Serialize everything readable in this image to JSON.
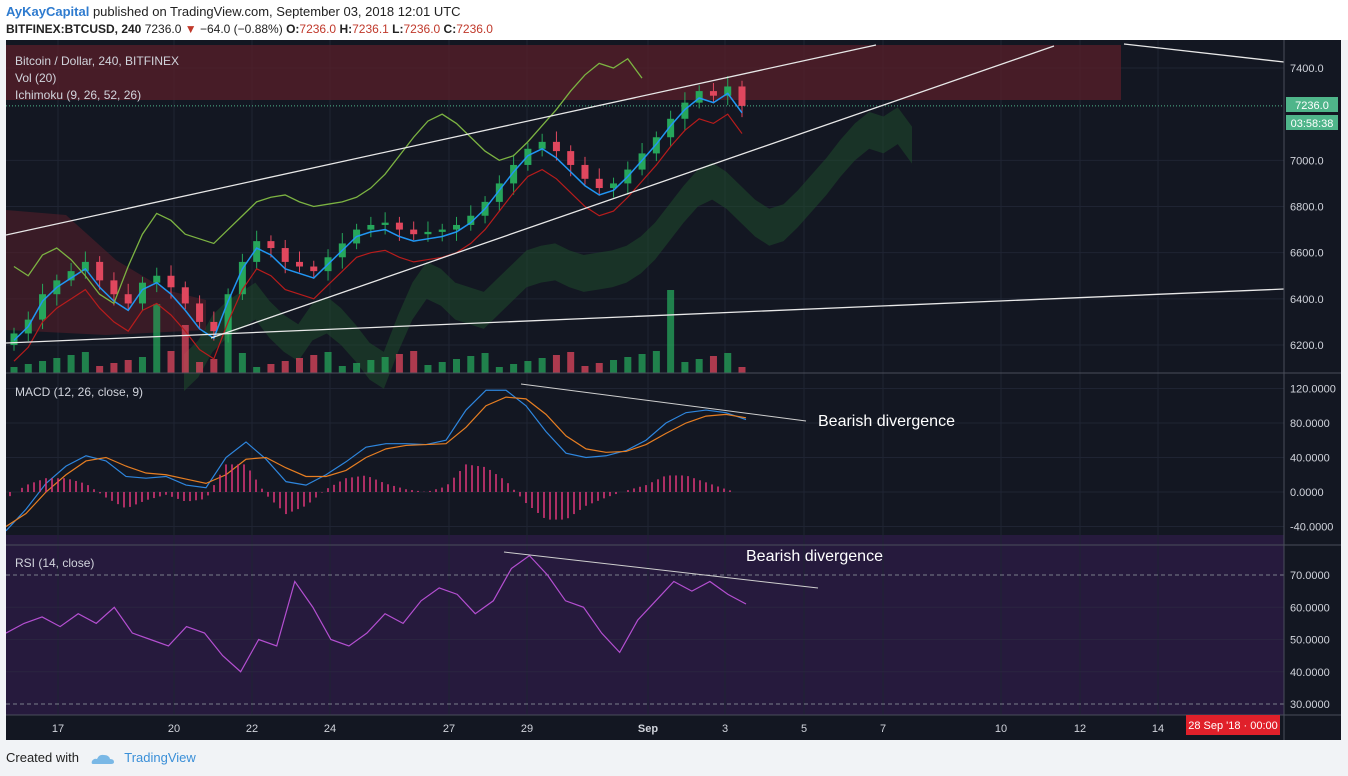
{
  "header": {
    "author": "AyKayCapital",
    "published": "published on TradingView.com, September 03, 2018 12:01 UTC",
    "symbol": "BITFINEX:BTCUSD, 240",
    "last_price": "7236.0",
    "change": "−64.0 (−0.88%)",
    "o_label": "O:",
    "o_value": "7236.0",
    "h_label": "H:",
    "h_value": "7236.1",
    "l_label": "L:",
    "l_value": "7236.0",
    "c_label": "C:",
    "c_value": "7236.0"
  },
  "colors": {
    "up": "#26a65b",
    "down": "#e0475e",
    "background": "#131722",
    "macd_line": "#2e86de",
    "macd_signal": "#e67e22",
    "rsi": "#b44fd1",
    "tenkan": "#2196f3",
    "kijun": "#b71c1c",
    "chikou": "#7cb342"
  },
  "chart_data": [
    {
      "type": "candlestick",
      "title": "Bitcoin / Dollar, 240, BITFINEX",
      "indicators": [
        "Vol (20)",
        "Ichimoku (9, 26, 52, 26)"
      ],
      "x_ticks": [
        "17",
        "20",
        "22",
        "24",
        "27",
        "29",
        "Sep",
        "3",
        "5",
        "7",
        "10",
        "12",
        "14"
      ],
      "y_ticks": [
        "7400.0",
        "7000.0",
        "6800.0",
        "6600.0",
        "6400.0",
        "6200.0"
      ],
      "ylim": [
        6150,
        7500
      ],
      "price_label": "7236.0",
      "countdown_label": "03:58:38",
      "date_label": "28 Sep '18 · 00:00",
      "close_series": [
        6250,
        6310,
        6420,
        6480,
        6520,
        6560,
        6480,
        6420,
        6380,
        6470,
        6500,
        6450,
        6380,
        6300,
        6260,
        6420,
        6560,
        6650,
        6620,
        6560,
        6540,
        6520,
        6580,
        6640,
        6700,
        6720,
        6730,
        6700,
        6680,
        6690,
        6700,
        6720,
        6760,
        6820,
        6900,
        6980,
        7050,
        7080,
        7040,
        6980,
        6920,
        6880,
        6900,
        6960,
        7030,
        7100,
        7180,
        7250,
        7300,
        7280,
        7320,
        7236
      ]
    },
    {
      "type": "line",
      "title": "MACD (12, 26, close, 9)",
      "y_ticks": [
        "120.0000",
        "80.0000",
        "40.0000",
        "0.0000",
        "-40.0000"
      ],
      "ylim": [
        -50,
        130
      ],
      "annotation": "Bearish divergence",
      "series": [
        {
          "values": [
            -45,
            -20,
            10,
            30,
            42,
            36,
            18,
            16,
            18,
            8,
            5,
            40,
            58,
            38,
            12,
            8,
            20,
            35,
            52,
            56,
            56,
            55,
            60,
            95,
            118,
            118,
            100,
            70,
            45,
            40,
            42,
            48,
            60,
            80,
            92,
            95,
            92,
            84
          ]
        },
        {
          "values": [
            -40,
            -25,
            0,
            20,
            36,
            40,
            30,
            22,
            20,
            15,
            10,
            20,
            38,
            40,
            28,
            18,
            18,
            25,
            40,
            50,
            54,
            55,
            56,
            75,
            100,
            110,
            108,
            90,
            65,
            50,
            46,
            47,
            55,
            68,
            80,
            88,
            90,
            86
          ]
        }
      ]
    },
    {
      "type": "line",
      "title": "RSI (14, close)",
      "y_ticks": [
        "70.0000",
        "60.0000",
        "50.0000",
        "40.0000",
        "30.0000"
      ],
      "ylim": [
        28,
        77
      ],
      "annotation": "Bearish divergence",
      "series": [
        {
          "values": [
            52,
            55,
            57,
            54,
            58,
            55,
            60,
            52,
            50,
            48,
            54,
            52,
            45,
            40,
            50,
            48,
            68,
            60,
            50,
            48,
            52,
            58,
            55,
            62,
            66,
            64,
            58,
            62,
            72,
            76,
            70,
            62,
            60,
            52,
            46,
            56,
            62,
            68,
            65,
            68,
            64,
            61
          ]
        }
      ]
    }
  ]
}
